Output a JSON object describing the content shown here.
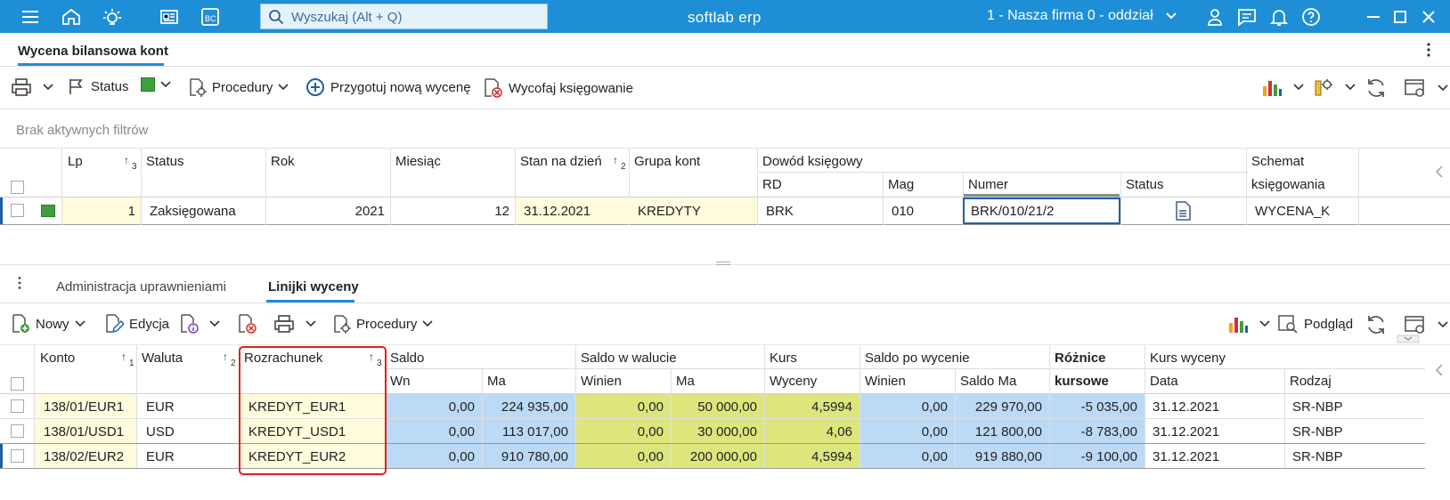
{
  "topbar": {
    "search_placeholder": "Wyszukaj (Alt + Q)",
    "app_title": "softlab erp",
    "company": "1 - Nasza firma 0 - oddział",
    "icons": [
      "menu-icon",
      "home-icon",
      "idea-icon",
      "news-icon",
      "bc-icon",
      "search-icon",
      "user-icon",
      "chat-icon",
      "bell-icon",
      "help-icon",
      "minimize-icon",
      "maximize-icon",
      "close-icon"
    ],
    "bc_label": "BC"
  },
  "window": {
    "tab": "Wycena bilansowa kont"
  },
  "toolbar1": {
    "status": "Status",
    "procedures": "Procedury",
    "prepare": "Przygotuj nową wycenę",
    "withdraw": "Wycofaj księgowanie",
    "status_color": "#3f9e3f"
  },
  "filters": {
    "none": "Brak aktywnych filtrów"
  },
  "grid1": {
    "headers": {
      "lp": "Lp",
      "lp_sort": "3",
      "status": "Status",
      "rok": "Rok",
      "miesiac": "Miesiąc",
      "stan": "Stan na dzień",
      "stan_sort": "2",
      "grupa": "Grupa kont",
      "dowod": "Dowód księgowy",
      "rd": "RD",
      "mag": "Mag",
      "numer": "Numer",
      "status2": "Status",
      "schemat1": "Schemat",
      "schemat2": "księgowania"
    },
    "row": {
      "lp": "1",
      "status": "Zaksięgowana",
      "rok": "2021",
      "miesiac": "12",
      "stan": "31.12.2021",
      "grupa": "KREDYTY",
      "rd": "BRK",
      "mag": "010",
      "numer": "BRK/010/21/2",
      "schemat": "WYCENA_K"
    }
  },
  "tabs2": {
    "admin": "Administracja uprawnieniami",
    "lines": "Linijki wyceny"
  },
  "toolbar2": {
    "new": "Nowy",
    "edit": "Edycja",
    "procedures": "Procedury",
    "preview": "Podgląd"
  },
  "grid2": {
    "headers": {
      "konto": "Konto",
      "konto_sort": "1",
      "waluta": "Waluta",
      "waluta_sort": "2",
      "rozrachunek": "Rozrachunek",
      "rozrachunek_sort": "3",
      "saldo": "Saldo",
      "wn": "Wn",
      "ma": "Ma",
      "saldo_waluta": "Saldo w walucie",
      "winien": "Winien",
      "ma2": "Ma",
      "kurs": "Kurs",
      "wyceny": "Wyceny",
      "saldo_po": "Saldo po wycenie",
      "winien2": "Winien",
      "saldo_ma": "Saldo Ma",
      "roznice1": "Różnice",
      "roznice2": "kursowe",
      "kurs_wyceny": "Kurs wyceny",
      "data": "Data",
      "rodzaj": "Rodzaj"
    },
    "rows": [
      {
        "konto": "138/01/EUR1",
        "waluta": "EUR",
        "rozrachunek": "KREDYT_EUR1",
        "wn": "0,00",
        "ma": "224 935,00",
        "winien": "0,00",
        "ma2": "50 000,00",
        "kurs": "4,5994",
        "winien2": "0,00",
        "saldo_ma": "229 970,00",
        "roznice": "-5 035,00",
        "data": "31.12.2021",
        "rodzaj": "SR-NBP"
      },
      {
        "konto": "138/01/USD1",
        "waluta": "USD",
        "rozrachunek": "KREDYT_USD1",
        "wn": "0,00",
        "ma": "113 017,00",
        "winien": "0,00",
        "ma2": "30 000,00",
        "kurs": "4,06",
        "winien2": "0,00",
        "saldo_ma": "121 800,00",
        "roznice": "-8 783,00",
        "data": "31.12.2021",
        "rodzaj": "SR-NBP"
      },
      {
        "konto": "138/02/EUR2",
        "waluta": "EUR",
        "rozrachunek": "KREDYT_EUR2",
        "wn": "0,00",
        "ma": "910 780,00",
        "winien": "0,00",
        "ma2": "200 000,00",
        "kurs": "4,5994",
        "winien2": "0,00",
        "saldo_ma": "919 880,00",
        "roznice": "-9 100,00",
        "data": "31.12.2021",
        "rodzaj": "SR-NBP"
      }
    ]
  }
}
